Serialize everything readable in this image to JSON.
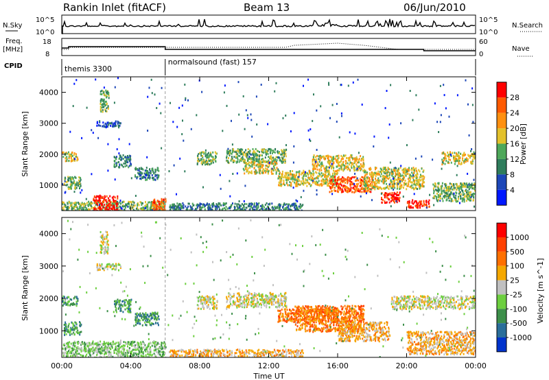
{
  "header": {
    "station": "Rankin Inlet (fitACF)",
    "beam": "Beam 13",
    "date": "06/Jun/2010"
  },
  "strip_nsky": {
    "left_label": "N.Sky",
    "right_label": "N.Search",
    "ticks": [
      "10^5",
      "10^0"
    ]
  },
  "strip_freq": {
    "left_label": "Freq.",
    "left_unit": "[MHz]",
    "left_ticks": [
      "18",
      "8"
    ],
    "right_label": "Nave",
    "right_ticks": [
      "60",
      "0"
    ]
  },
  "strip_cpid": {
    "label": "CPID",
    "segments": [
      {
        "name": "themis 3300",
        "start_h": 0,
        "end_h": 6
      },
      {
        "name": "normalsound (fast) 157",
        "start_h": 6,
        "end_h": 24
      }
    ]
  },
  "time_axis": {
    "label": "Time UT",
    "ticks": [
      "00:00",
      "04:00",
      "08:00",
      "12:00",
      "16:00",
      "20:00",
      "00:00"
    ],
    "tick_hours": [
      0,
      4,
      8,
      12,
      16,
      20,
      24
    ]
  },
  "chart_data": [
    {
      "type": "heatmap",
      "title": "",
      "xlabel": "Time UT",
      "ylabel": "Slant Range [km]",
      "xlim": [
        0,
        24
      ],
      "ylim": [
        180,
        4500
      ],
      "y_ticks": [
        1000,
        2000,
        3000,
        4000
      ],
      "colorbar": {
        "label": "Power [dB]",
        "ticks": [
          "4",
          "8",
          "12",
          "16",
          "20",
          "24",
          "28"
        ],
        "colors": [
          "#0018ff",
          "#1d47b8",
          "#2f7d5c",
          "#4ea85a",
          "#e3c12b",
          "#ff9010",
          "#ff5a00",
          "#ff0000"
        ]
      },
      "regions": [
        {
          "t0": 0.0,
          "t1": 0.9,
          "r0": 1800,
          "r1": 2100,
          "level": 4
        },
        {
          "t0": 0.1,
          "t1": 1.1,
          "r0": 900,
          "r1": 1300,
          "level": 3
        },
        {
          "t0": 2.2,
          "t1": 2.7,
          "r0": 3400,
          "r1": 4100,
          "level": 3
        },
        {
          "t0": 2.0,
          "t1": 3.4,
          "r0": 2900,
          "r1": 3100,
          "level": 1
        },
        {
          "t0": 3.0,
          "t1": 4.0,
          "r0": 1600,
          "r1": 2000,
          "level": 2
        },
        {
          "t0": 4.2,
          "t1": 5.6,
          "r0": 1200,
          "r1": 1600,
          "level": 2
        },
        {
          "t0": 0.0,
          "t1": 6.0,
          "r0": 180,
          "r1": 500,
          "level": 3
        },
        {
          "t0": 1.8,
          "t1": 3.2,
          "r0": 180,
          "r1": 700,
          "level": 7
        },
        {
          "t0": 5.2,
          "t1": 6.0,
          "r0": 200,
          "r1": 600,
          "level": 6
        },
        {
          "t0": 6.2,
          "t1": 14.0,
          "r0": 180,
          "r1": 450,
          "level": 2
        },
        {
          "t0": 7.8,
          "t1": 9.0,
          "r0": 1700,
          "r1": 2100,
          "level": 3
        },
        {
          "t0": 9.5,
          "t1": 13.0,
          "r0": 1750,
          "r1": 2200,
          "level": 3
        },
        {
          "t0": 10.5,
          "t1": 12.5,
          "r0": 1400,
          "r1": 1800,
          "level": 4
        },
        {
          "t0": 12.5,
          "t1": 16.0,
          "r0": 1000,
          "r1": 1500,
          "level": 4
        },
        {
          "t0": 14.5,
          "t1": 17.5,
          "r0": 1500,
          "r1": 2000,
          "level": 4
        },
        {
          "t0": 15.5,
          "t1": 18.0,
          "r0": 800,
          "r1": 1300,
          "level": 6
        },
        {
          "t0": 17.5,
          "t1": 21.0,
          "r0": 900,
          "r1": 1600,
          "level": 4
        },
        {
          "t0": 18.5,
          "t1": 19.6,
          "r0": 450,
          "r1": 800,
          "level": 7
        },
        {
          "t0": 20.0,
          "t1": 21.3,
          "r0": 300,
          "r1": 550,
          "level": 7
        },
        {
          "t0": 21.5,
          "t1": 24.0,
          "r0": 500,
          "r1": 1100,
          "level": 3
        },
        {
          "t0": 22.0,
          "t1": 24.0,
          "r0": 1700,
          "r1": 2100,
          "level": 4
        }
      ]
    },
    {
      "type": "heatmap",
      "title": "",
      "xlabel": "Time UT",
      "ylabel": "Slant Range [km]",
      "xlim": [
        0,
        24
      ],
      "ylim": [
        180,
        4500
      ],
      "y_ticks": [
        1000,
        2000,
        3000,
        4000
      ],
      "colorbar": {
        "label": "Velocity [m s^-1]",
        "ticks": [
          "1000",
          "500",
          "100",
          "25",
          "-25",
          "-100",
          "-500",
          "-1000"
        ],
        "colors": [
          "#0033cc",
          "#2a6e9a",
          "#3d8f4a",
          "#6dcf3f",
          "#c0c0c0",
          "#f5a800",
          "#ff7000",
          "#ff4000",
          "#ff0000"
        ]
      },
      "regions": [
        {
          "t0": 0.0,
          "t1": 0.9,
          "r0": 1800,
          "r1": 2100,
          "level": 2
        },
        {
          "t0": 0.1,
          "t1": 1.1,
          "r0": 900,
          "r1": 1300,
          "level": 2
        },
        {
          "t0": 2.2,
          "t1": 2.7,
          "r0": 3400,
          "r1": 4100,
          "level": 4
        },
        {
          "t0": 2.0,
          "t1": 3.4,
          "r0": 2900,
          "r1": 3100,
          "level": 4
        },
        {
          "t0": 3.0,
          "t1": 4.0,
          "r0": 1600,
          "r1": 2000,
          "level": 2
        },
        {
          "t0": 4.2,
          "t1": 5.6,
          "r0": 1200,
          "r1": 1600,
          "level": 2
        },
        {
          "t0": 0.0,
          "t1": 6.0,
          "r0": 180,
          "r1": 700,
          "level": 3
        },
        {
          "t0": 6.2,
          "t1": 14.0,
          "r0": 180,
          "r1": 450,
          "level": 5
        },
        {
          "t0": 7.8,
          "t1": 9.0,
          "r0": 1700,
          "r1": 2100,
          "level": 4
        },
        {
          "t0": 9.5,
          "t1": 13.0,
          "r0": 1750,
          "r1": 2200,
          "level": 4
        },
        {
          "t0": 12.5,
          "t1": 16.0,
          "r0": 1300,
          "r1": 1700,
          "level": 6
        },
        {
          "t0": 13.5,
          "t1": 17.5,
          "r0": 1000,
          "r1": 1800,
          "level": 6
        },
        {
          "t0": 16.0,
          "t1": 19.0,
          "r0": 700,
          "r1": 1300,
          "level": 5
        },
        {
          "t0": 20.0,
          "t1": 24.0,
          "r0": 300,
          "r1": 1000,
          "level": 5
        },
        {
          "t0": 19.0,
          "t1": 24.0,
          "r0": 1700,
          "r1": 2100,
          "level": 4
        }
      ]
    }
  ]
}
